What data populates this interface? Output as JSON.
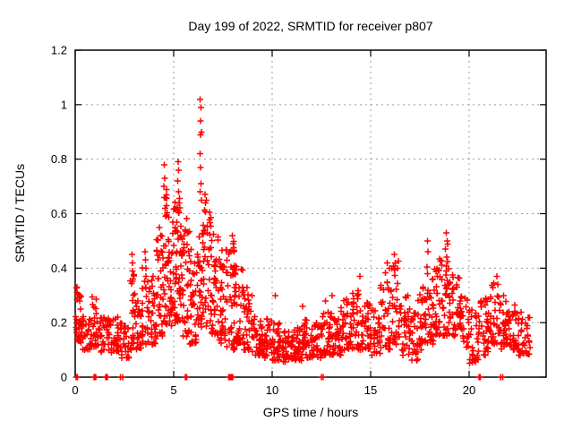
{
  "window": {
    "background": "#ffffff"
  },
  "chart_data": {
    "type": "scatter",
    "title": "Day 199 of 2022, SRMTID for receiver p807",
    "xlabel": "GPS time / hours",
    "ylabel": "SRMTID / TECUs",
    "xlim": [
      0,
      23.91
    ],
    "ylim": [
      0,
      1.2
    ],
    "xticks": [
      {
        "v": 0,
        "label": "0"
      },
      {
        "v": 5,
        "label": "5"
      },
      {
        "v": 10,
        "label": "10"
      },
      {
        "v": 15,
        "label": "15"
      },
      {
        "v": 20,
        "label": "20"
      }
    ],
    "yticks": [
      {
        "v": 0,
        "label": "0"
      },
      {
        "v": 0.2,
        "label": "0.2"
      },
      {
        "v": 0.4,
        "label": "0.4"
      },
      {
        "v": 0.6,
        "label": "0.6"
      },
      {
        "v": 0.8,
        "label": "0.8"
      },
      {
        "v": 1,
        "label": "1"
      },
      {
        "v": 1.2,
        "label": "1.2"
      }
    ],
    "grid": {
      "on": true,
      "style": "dotted"
    },
    "legend": {
      "visible": false
    },
    "colors": {
      "marker": "#ff0000",
      "grid": "#9b9b9b",
      "axis": "#000000",
      "text": "#000000",
      "background": "#ffffff"
    },
    "marker": {
      "shape": "plus",
      "size": 7,
      "stroke_width": 1.5
    },
    "series": [
      {
        "name": "SRMTID",
        "seed": 20220199,
        "envelope_bins_x0_x1_ylo_yhi_n": [
          [
            0.0,
            0.3,
            0.13,
            0.33,
            26
          ],
          [
            0.3,
            0.8,
            0.1,
            0.24,
            30
          ],
          [
            0.8,
            1.2,
            0.11,
            0.3,
            26
          ],
          [
            1.2,
            1.8,
            0.08,
            0.24,
            36
          ],
          [
            1.8,
            2.3,
            0.09,
            0.22,
            30
          ],
          [
            2.3,
            2.8,
            0.07,
            0.2,
            26
          ],
          [
            2.8,
            3.1,
            0.1,
            0.38,
            24
          ],
          [
            3.1,
            3.4,
            0.1,
            0.3,
            22
          ],
          [
            3.4,
            3.75,
            0.12,
            0.42,
            28
          ],
          [
            3.75,
            4.1,
            0.12,
            0.38,
            28
          ],
          [
            4.1,
            4.45,
            0.15,
            0.55,
            34
          ],
          [
            4.45,
            4.8,
            0.18,
            0.7,
            40
          ],
          [
            4.8,
            5.15,
            0.18,
            0.65,
            42
          ],
          [
            5.15,
            5.45,
            0.2,
            0.72,
            36
          ],
          [
            5.45,
            5.8,
            0.15,
            0.6,
            34
          ],
          [
            5.8,
            6.15,
            0.12,
            0.48,
            32
          ],
          [
            6.15,
            6.5,
            0.18,
            0.6,
            34
          ],
          [
            6.5,
            6.9,
            0.18,
            0.65,
            38
          ],
          [
            6.9,
            7.3,
            0.15,
            0.55,
            38
          ],
          [
            7.3,
            7.7,
            0.12,
            0.48,
            36
          ],
          [
            7.7,
            8.1,
            0.1,
            0.5,
            38
          ],
          [
            8.1,
            8.5,
            0.12,
            0.44,
            36
          ],
          [
            8.5,
            9.0,
            0.1,
            0.33,
            36
          ],
          [
            9.0,
            9.5,
            0.08,
            0.25,
            34
          ],
          [
            9.5,
            10.0,
            0.07,
            0.22,
            34
          ],
          [
            10.0,
            10.5,
            0.06,
            0.2,
            34
          ],
          [
            10.5,
            11.0,
            0.055,
            0.17,
            34
          ],
          [
            11.0,
            11.5,
            0.06,
            0.19,
            34
          ],
          [
            11.5,
            12.0,
            0.07,
            0.22,
            34
          ],
          [
            12.0,
            12.5,
            0.07,
            0.2,
            34
          ],
          [
            12.5,
            13.0,
            0.08,
            0.24,
            34
          ],
          [
            13.0,
            13.5,
            0.08,
            0.22,
            34
          ],
          [
            13.5,
            14.0,
            0.1,
            0.29,
            34
          ],
          [
            14.0,
            14.5,
            0.1,
            0.32,
            34
          ],
          [
            14.5,
            15.0,
            0.1,
            0.28,
            34
          ],
          [
            15.0,
            15.5,
            0.08,
            0.25,
            32
          ],
          [
            15.5,
            16.0,
            0.1,
            0.4,
            34
          ],
          [
            16.0,
            16.5,
            0.12,
            0.44,
            34
          ],
          [
            16.5,
            17.0,
            0.08,
            0.3,
            32
          ],
          [
            17.0,
            17.4,
            0.06,
            0.24,
            26
          ],
          [
            17.4,
            17.8,
            0.1,
            0.34,
            30
          ],
          [
            17.8,
            18.2,
            0.12,
            0.48,
            32
          ],
          [
            18.2,
            18.6,
            0.15,
            0.44,
            32
          ],
          [
            18.6,
            19.0,
            0.15,
            0.5,
            32
          ],
          [
            19.0,
            19.5,
            0.15,
            0.38,
            32
          ],
          [
            19.5,
            20.0,
            0.1,
            0.3,
            32
          ],
          [
            20.0,
            20.5,
            0.05,
            0.25,
            30
          ],
          [
            20.5,
            21.0,
            0.08,
            0.3,
            32
          ],
          [
            21.0,
            21.5,
            0.12,
            0.36,
            32
          ],
          [
            21.5,
            22.0,
            0.1,
            0.3,
            32
          ],
          [
            22.0,
            22.5,
            0.1,
            0.27,
            32
          ],
          [
            22.5,
            23.1,
            0.08,
            0.24,
            34
          ]
        ],
        "peak_points_x_y": [
          [
            0.08,
            0.33
          ],
          [
            0.1,
            0.31
          ],
          [
            2.88,
            0.45
          ],
          [
            2.9,
            0.42
          ],
          [
            2.92,
            0.39
          ],
          [
            2.94,
            0.36
          ],
          [
            3.54,
            0.46
          ],
          [
            3.56,
            0.43
          ],
          [
            3.58,
            0.4
          ],
          [
            3.6,
            0.37
          ],
          [
            4.5,
            0.7
          ],
          [
            4.52,
            0.78
          ],
          [
            4.53,
            0.66
          ],
          [
            4.55,
            0.73
          ],
          [
            4.56,
            0.62
          ],
          [
            4.58,
            0.66
          ],
          [
            4.6,
            0.59
          ],
          [
            5.2,
            0.72
          ],
          [
            5.22,
            0.79
          ],
          [
            5.24,
            0.76
          ],
          [
            5.26,
            0.68
          ],
          [
            5.28,
            0.64
          ],
          [
            6.35,
            1.02
          ],
          [
            6.38,
            0.99
          ],
          [
            6.36,
            0.94
          ],
          [
            6.4,
            0.9
          ],
          [
            6.37,
            0.89
          ],
          [
            6.33,
            0.82
          ],
          [
            6.36,
            0.77
          ],
          [
            6.38,
            0.71
          ],
          [
            6.35,
            0.68
          ],
          [
            6.4,
            0.65
          ],
          [
            6.6,
            0.67
          ],
          [
            6.62,
            0.64
          ],
          [
            7.98,
            0.52
          ],
          [
            8.02,
            0.49
          ],
          [
            8.05,
            0.46
          ],
          [
            10.15,
            0.3
          ],
          [
            11.55,
            0.26
          ],
          [
            12.7,
            0.28
          ],
          [
            13.05,
            0.3
          ],
          [
            14.45,
            0.37
          ],
          [
            15.85,
            0.42
          ],
          [
            15.95,
            0.4
          ],
          [
            16.2,
            0.45
          ],
          [
            16.25,
            0.42
          ],
          [
            17.88,
            0.5
          ],
          [
            17.92,
            0.46
          ],
          [
            18.85,
            0.53
          ],
          [
            18.88,
            0.5
          ],
          [
            18.8,
            0.47
          ],
          [
            21.4,
            0.37
          ],
          [
            21.45,
            0.34
          ]
        ],
        "zero_axis_points_x": [
          0.05,
          0.08,
          0.12,
          0.95,
          0.98,
          1.01,
          1.04,
          1.55,
          1.58,
          1.61,
          1.64,
          2.3,
          2.42,
          5.58,
          5.66,
          7.8,
          7.84,
          7.88,
          7.92,
          7.96,
          8.0,
          12.5,
          12.6,
          20.5,
          20.54,
          20.58,
          21.6,
          21.7
        ]
      }
    ]
  }
}
